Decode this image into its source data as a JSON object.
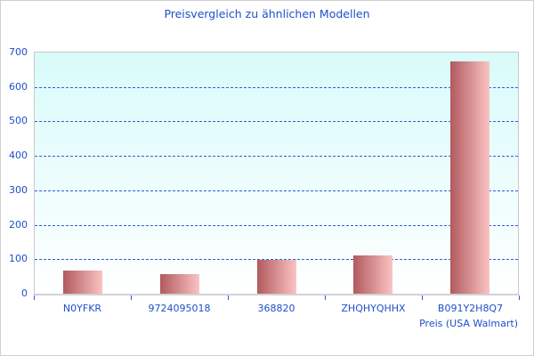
{
  "chart_data": {
    "type": "bar",
    "title": "Preisvergleich zu ähnlichen Modellen",
    "categories": [
      "N0YFKR",
      "9724095018",
      "368820",
      "ZHQHYQHHX",
      "B091Y2H8Q7"
    ],
    "values": [
      68,
      56,
      97,
      110,
      674
    ],
    "xlabel": "Preis (USA Walmart)",
    "ylabel": "",
    "ylim": [
      0,
      700
    ],
    "yticks": [
      0,
      100,
      200,
      300,
      400,
      500,
      600,
      700
    ],
    "gridlines_at": [
      100,
      200,
      300,
      400,
      500,
      600
    ],
    "grid": true,
    "legend": false
  },
  "colors": {
    "title_text": "#1d50c8",
    "axis_text": "#1d50c8",
    "gridline": "#2e5ed8",
    "tick": "#2e5ed8",
    "bar_gradient_start": "#b15a5e",
    "bar_gradient_end": "#fbc3c3",
    "plot_bg_top": "#d8fbfa",
    "plot_bg_bottom": "#ffffff",
    "plot_border": "#c9c9c9",
    "baseline": "#d2d2d2"
  }
}
